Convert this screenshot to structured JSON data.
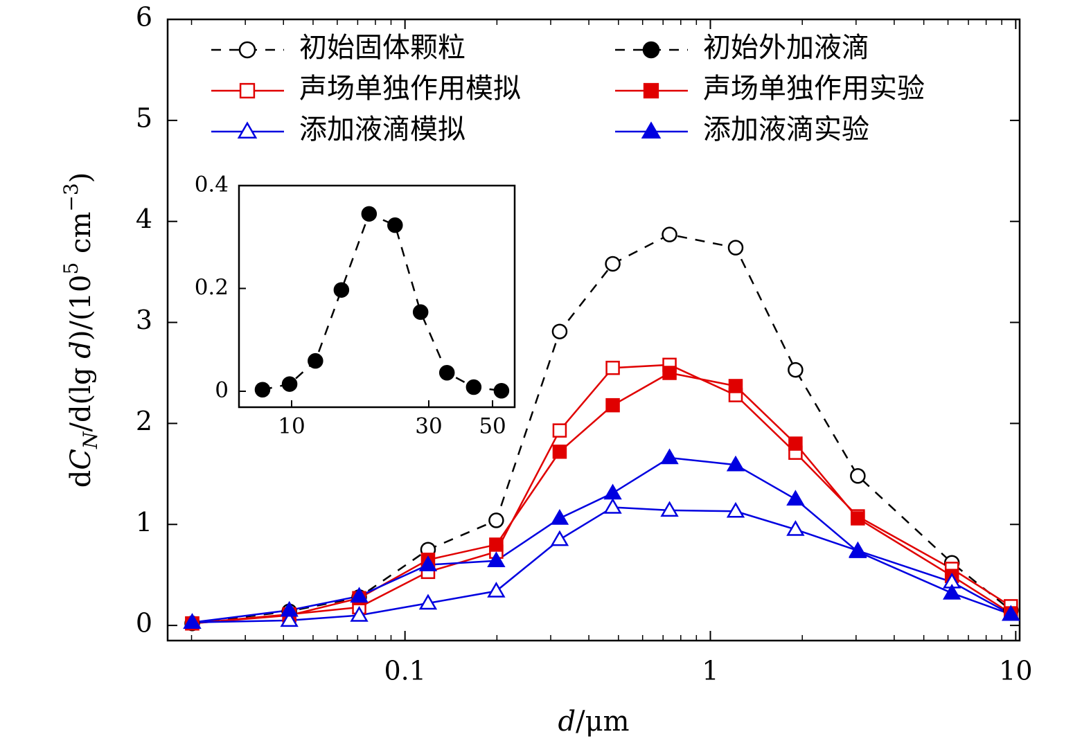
{
  "chart_data": [
    {
      "type": "line",
      "log_x": true,
      "x": [
        0.0201,
        0.0418,
        0.0708,
        0.119,
        0.199,
        0.321,
        0.479,
        0.735,
        1.21,
        1.9,
        3.04,
        6.18,
        9.64
      ],
      "xlim": [
        0.0167,
        10.3
      ],
      "xticks": [
        0.1,
        1,
        10
      ],
      "ylim": [
        -0.15,
        6
      ],
      "yticks": [
        0,
        1,
        2,
        3,
        4,
        5,
        6
      ],
      "xlabel": [
        {
          "text": "d",
          "italic": true
        },
        {
          "text": "/μm"
        }
      ],
      "ylabel": [
        {
          "text": "d"
        },
        {
          "text": "C",
          "italic": true
        },
        {
          "text": "N",
          "italic": true,
          "sub": true
        },
        {
          "text": "/d(lg "
        },
        {
          "text": "d",
          "italic": true
        },
        {
          "text": ")/(10"
        },
        {
          "text": "5",
          "sup": true
        },
        {
          "text": " cm"
        },
        {
          "text": "−3",
          "sup": true
        },
        {
          "text": ")"
        }
      ],
      "series": [
        {
          "name": "初始固体颗粒",
          "color": "#000000",
          "marker": "circle",
          "filled": false,
          "dash": true,
          "values": [
            0.02,
            0.14,
            0.28,
            0.75,
            1.04,
            2.91,
            3.58,
            3.87,
            3.74,
            2.53,
            1.48,
            0.62,
            0.15
          ]
        },
        {
          "name": "声场单独作用模拟",
          "color": "#e00000",
          "marker": "square",
          "filled": false,
          "dash": false,
          "values": [
            0.02,
            0.11,
            0.18,
            0.53,
            0.73,
            1.93,
            2.55,
            2.58,
            2.28,
            1.71,
            1.08,
            0.56,
            0.19
          ]
        },
        {
          "name": "声场单独作用实验",
          "color": "#e00000",
          "marker": "square",
          "filled": true,
          "dash": false,
          "values": [
            0.02,
            0.1,
            0.27,
            0.65,
            0.8,
            1.72,
            2.18,
            2.5,
            2.37,
            1.8,
            1.06,
            0.49,
            0.12
          ]
        },
        {
          "name": "添加液滴模拟",
          "color": "#0000e0",
          "marker": "triangle",
          "filled": false,
          "dash": false,
          "values": [
            0.03,
            0.05,
            0.1,
            0.22,
            0.34,
            0.85,
            1.17,
            1.14,
            1.13,
            0.95,
            0.74,
            0.43,
            0.11
          ]
        },
        {
          "name": "添加液滴实验",
          "color": "#0000e0",
          "marker": "triangle",
          "filled": true,
          "dash": false,
          "values": [
            0.03,
            0.15,
            0.29,
            0.6,
            0.64,
            1.06,
            1.31,
            1.66,
            1.59,
            1.25,
            0.73,
            0.32,
            0.11
          ]
        }
      ]
    },
    {
      "type": "line",
      "log_x": true,
      "x": [
        7.92,
        9.84,
        12.1,
        14.9,
        18.6,
        22.9,
        28.1,
        34.7,
        43.0,
        53.7
      ],
      "xlim": [
        6.56,
        59.7
      ],
      "xticks": [
        10,
        30,
        50
      ],
      "ylim": [
        -0.031,
        0.4
      ],
      "yticks": [
        0,
        0.2,
        0.4
      ],
      "series": [
        {
          "name": "初始外加液滴",
          "color": "#000000",
          "marker": "circle",
          "filled": true,
          "dash": true,
          "values": [
            0.003,
            0.014,
            0.059,
            0.197,
            0.345,
            0.323,
            0.154,
            0.036,
            0.008,
            0.001
          ]
        }
      ]
    }
  ]
}
